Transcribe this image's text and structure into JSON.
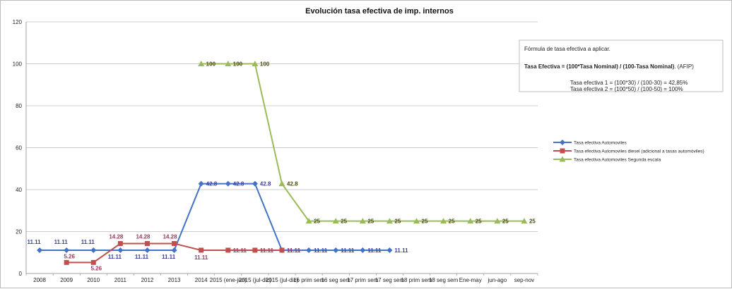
{
  "chart_data": {
    "type": "line",
    "title": "Evolución tasa efectiva  de imp. internos",
    "ylim": [
      0,
      120
    ],
    "yticks": [
      "0",
      "20",
      "40",
      "60",
      "80",
      "100",
      "120"
    ],
    "grid": true,
    "legend_position": "right",
    "categories": [
      "2008",
      "2009",
      "2010",
      "2011",
      "2012",
      "2013",
      "2014",
      "2015 (ene-jun)",
      "2015 (jul-dic)",
      "2015 (jul-dic)",
      "16 prim sem",
      "16 seg sem",
      "17 prim sem",
      "17 seg sem",
      "18 prim sem",
      "18 seg sem",
      "Ene-may",
      "jun-ago",
      "sep-nov"
    ],
    "series": [
      {
        "name": "Tasa efectiva  Automoviles",
        "color": "#4472c4",
        "marker": "diamond",
        "values": [
          11.11,
          11.11,
          11.11,
          11.11,
          11.11,
          11.11,
          42.8,
          42.8,
          42.8,
          11.11,
          11.11,
          11.11,
          11.11,
          11.11,
          null,
          null,
          null,
          null,
          null
        ],
        "labels": [
          "11.11",
          "11.11",
          "11.11",
          "11.11",
          "11.11",
          "11.11",
          "42.8",
          "42.8",
          "42.8",
          "11.11",
          "11.11",
          "11.11",
          "11.11",
          "11.11",
          null,
          null,
          null,
          null,
          null
        ],
        "label_color": "#3b3f9e"
      },
      {
        "name": "Tasa efectiva Automoviles diesel (adicional a tasas automóviles)",
        "color": "#c0504d",
        "marker": "square",
        "values": [
          null,
          5.26,
          5.26,
          14.28,
          14.28,
          14.28,
          11.11,
          11.11,
          11.11,
          11.11,
          null,
          null,
          null,
          null,
          null,
          null,
          null,
          null,
          null
        ],
        "labels": [
          null,
          "5.26",
          "5.26",
          "14.28",
          "14.28",
          "14.28",
          "11.11",
          "11.11",
          "11.11",
          "11.11",
          null,
          null,
          null,
          null,
          null,
          null,
          null,
          null,
          null
        ],
        "label_color": "#953a5e"
      },
      {
        "name": "Tasa efectiva  Automoviles Segunda escala",
        "color": "#9bbb59",
        "marker": "triangle",
        "values": [
          null,
          null,
          null,
          null,
          null,
          null,
          100,
          100,
          100,
          42.8,
          25,
          25,
          25,
          25,
          25,
          25,
          25,
          25,
          25
        ],
        "labels": [
          null,
          null,
          null,
          null,
          null,
          null,
          "100",
          "100",
          "100",
          "42.8",
          "25",
          "25",
          "25",
          "25",
          "25",
          "25",
          "25",
          "25",
          "25"
        ],
        "label_color": "#4a4a10"
      }
    ]
  },
  "formula_box": {
    "line1": "Fórmula de tasa efectiva a aplicar.",
    "line2_bold": "Tasa Efectiva = (100*Tasa Nominal) / (100-Tasa Nominal)",
    "line2_rest": ". (AFIP)",
    "line3": "Tasa efectiva 1 = (100*30) / (100-30) = 42,85%",
    "line4": "Tasa efectiva 2 = (100*50) / (100-50) = 100%"
  }
}
